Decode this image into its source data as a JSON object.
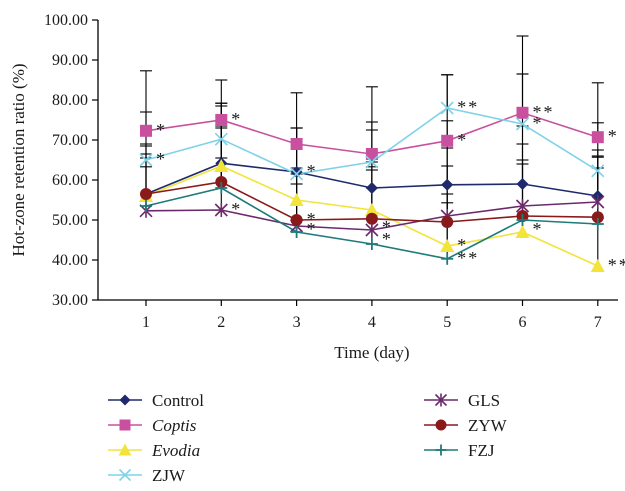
{
  "chart_data": {
    "type": "line",
    "xlabel": "Time (day)",
    "ylabel": "Hot-zone retention ratio (%)",
    "x": [
      1,
      2,
      3,
      4,
      5,
      6,
      7
    ],
    "x_tick_labels": [
      "1",
      "2",
      "3",
      "4",
      "5",
      "6",
      "7"
    ],
    "ylim": [
      30,
      100
    ],
    "y_tick_labels": [
      "30.00",
      "40.00",
      "50.00",
      "60.00",
      "70.00",
      "80.00",
      "90.00",
      "100.00"
    ],
    "y_ticks": [
      30,
      40,
      50,
      60,
      70,
      80,
      90,
      100
    ],
    "grid": false,
    "legend_position": "bottom",
    "series": [
      {
        "name": "Control",
        "color": "#1f2a6b",
        "marker": "diamond",
        "italic": false,
        "values": [
          56.5,
          64.2,
          62.0,
          58.0,
          58.8,
          59.0,
          56.0
        ],
        "error_plus": [
          12.0,
          15.0,
          11.0,
          16.5,
          16.0,
          27.5,
          10.0
        ]
      },
      {
        "name": "Coptis",
        "color": "#c8509f",
        "marker": "square",
        "italic": true,
        "values": [
          72.3,
          75.0,
          69.0,
          66.5,
          69.8,
          76.8,
          70.7
        ],
        "error_plus": [
          15.0,
          10.0,
          12.8,
          16.8,
          16.5,
          19.5,
          13.6
        ]
      },
      {
        "name": "Evodia",
        "color": "#f2e43a",
        "marker": "triangle",
        "italic": true,
        "values": [
          56.0,
          63.5,
          55.0,
          52.5,
          43.5,
          47.0,
          38.5
        ],
        "error_plus": [
          13.0,
          15.0,
          18.0,
          12.0,
          13.0,
          18.0,
          12.0
        ]
      },
      {
        "name": "ZJW",
        "color": "#7fd3e8",
        "marker": "x",
        "italic": false,
        "values": [
          65.0,
          70.2,
          61.5,
          64.5,
          78.0,
          74.0,
          62.3
        ],
        "error_plus": [
          12.0,
          9.0,
          11.5,
          8.0,
          8.3,
          12.5,
          12.0
        ]
      },
      {
        "name": "GLS",
        "color": "#6b2a6b",
        "marker": "asterisk",
        "italic": false,
        "values": [
          52.3,
          52.5,
          48.5,
          47.5,
          51.0,
          53.5,
          54.5
        ],
        "error_plus": [
          11.0,
          13.0,
          13.0,
          15.0,
          17.0,
          20.0,
          13.0
        ]
      },
      {
        "name": "ZYW",
        "color": "#8a1a1a",
        "marker": "circle",
        "italic": false,
        "values": [
          56.5,
          59.5,
          50.0,
          50.3,
          49.5,
          51.0,
          50.7
        ],
        "error_plus": [
          10.0,
          14.0,
          13.0,
          13.0,
          14.0,
          18.0,
          15.0
        ]
      },
      {
        "name": "FZJ",
        "color": "#1f7a7a",
        "marker": "plus",
        "italic": false,
        "values": [
          53.5,
          58.0,
          47.0,
          44.0,
          40.3,
          50.0,
          49.0
        ],
        "error_plus": [
          12.0,
          15.0,
          12.0,
          14.0,
          14.0,
          14.0,
          14.0
        ]
      }
    ],
    "annotations": [
      {
        "x": 1,
        "y": 72.3,
        "text": "*"
      },
      {
        "x": 1,
        "y": 65.0,
        "text": "*"
      },
      {
        "x": 2,
        "y": 75.0,
        "text": "*"
      },
      {
        "x": 2,
        "y": 52.5,
        "text": "*"
      },
      {
        "x": 3,
        "y": 62.0,
        "text": "*"
      },
      {
        "x": 3,
        "y": 50.0,
        "text": "*"
      },
      {
        "x": 3,
        "y": 47.5,
        "text": "*"
      },
      {
        "x": 4,
        "y": 48.0,
        "text": "*"
      },
      {
        "x": 4,
        "y": 45.0,
        "text": "*"
      },
      {
        "x": 5,
        "y": 78.0,
        "text": "**"
      },
      {
        "x": 5,
        "y": 69.8,
        "text": "*"
      },
      {
        "x": 5,
        "y": 43.5,
        "text": "*"
      },
      {
        "x": 5,
        "y": 40.3,
        "text": "**"
      },
      {
        "x": 6,
        "y": 76.8,
        "text": "**"
      },
      {
        "x": 6,
        "y": 74.0,
        "text": "*"
      },
      {
        "x": 6,
        "y": 47.5,
        "text": "*"
      },
      {
        "x": 7,
        "y": 70.7,
        "text": "*"
      },
      {
        "x": 7,
        "y": 38.5,
        "text": "**"
      }
    ]
  }
}
